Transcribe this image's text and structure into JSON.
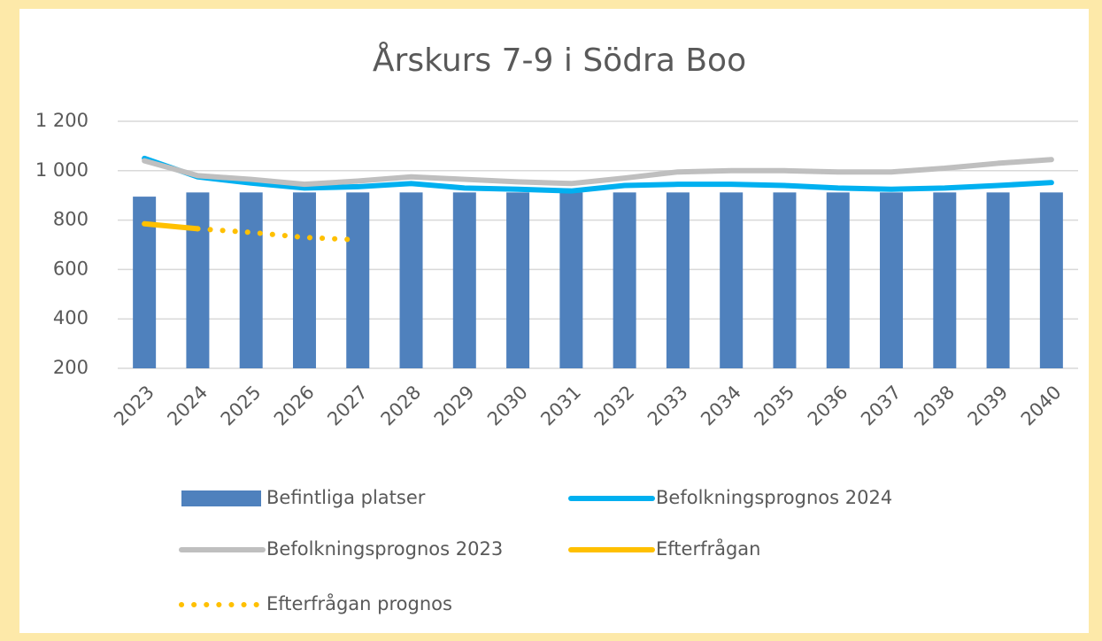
{
  "chart_data": {
    "type": "bar_line",
    "title": "Årskurs 7-9 i Södra Boo",
    "categories": [
      "2023",
      "2024",
      "2025",
      "2026",
      "2027",
      "2028",
      "2029",
      "2030",
      "2031",
      "2032",
      "2033",
      "2034",
      "2035",
      "2036",
      "2037",
      "2038",
      "2039",
      "2040"
    ],
    "series": [
      {
        "name": "Befintliga platser",
        "type": "bar",
        "color": "#4f81bd",
        "values": [
          895,
          912,
          912,
          912,
          912,
          912,
          912,
          912,
          912,
          912,
          912,
          912,
          912,
          912,
          912,
          912,
          912,
          912
        ]
      },
      {
        "name": "Befolkningsprognos 2024",
        "type": "line",
        "color": "#00b0f0",
        "values": [
          1050,
          975,
          950,
          930,
          935,
          948,
          930,
          925,
          918,
          940,
          945,
          945,
          940,
          930,
          925,
          930,
          940,
          952
        ]
      },
      {
        "name": "Befolkningsprognos 2023",
        "type": "line",
        "color": "#bfbfbf",
        "values": [
          1040,
          980,
          965,
          945,
          958,
          975,
          965,
          955,
          948,
          970,
          995,
          1000,
          1000,
          995,
          995,
          1010,
          1030,
          1045
        ]
      },
      {
        "name": "Efterfrågan",
        "type": "line",
        "color": "#ffc000",
        "values": [
          785,
          765,
          null,
          null,
          null,
          null,
          null,
          null,
          null,
          null,
          null,
          null,
          null,
          null,
          null,
          null,
          null,
          null
        ]
      },
      {
        "name": "Efterfrågan prognos",
        "type": "line",
        "dashed": true,
        "color": "#ffc000",
        "values": [
          null,
          765,
          750,
          730,
          720,
          null,
          null,
          null,
          null,
          null,
          null,
          null,
          null,
          null,
          null,
          null,
          null,
          null
        ]
      }
    ],
    "ylim": [
      200,
      1200
    ],
    "yticks": [
      200,
      400,
      600,
      800,
      {
        "value": 1000,
        "label": "1 000"
      },
      {
        "value": 1200,
        "label": "1 200"
      }
    ],
    "grid": true,
    "legend": "bottom"
  }
}
